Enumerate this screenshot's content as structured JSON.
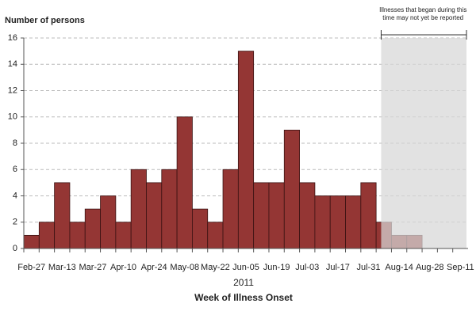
{
  "chart_data": {
    "type": "bar",
    "y_label": "Number of persons",
    "x_label_year": "2011",
    "x_label": "Week of Illness Onset",
    "annotation": "Illnesses that began during this time may not yet be reported",
    "categories": [
      "Feb-27",
      null,
      "Mar-13",
      null,
      "Mar-27",
      null,
      "Apr-10",
      null,
      "Apr-24",
      null,
      "May-08",
      null,
      "May-22",
      null,
      "Jun-05",
      null,
      "Jun-19",
      null,
      "Jul-03",
      null,
      "Jul-17",
      null,
      "Jul-31",
      null,
      "Aug-14",
      null,
      "Aug-28",
      null,
      "Sep-11"
    ],
    "values": [
      1,
      2,
      5,
      2,
      3,
      4,
      2,
      6,
      5,
      6,
      10,
      3,
      2,
      6,
      15,
      5,
      5,
      9,
      5,
      4,
      4,
      4,
      5,
      2,
      1,
      1,
      null,
      null,
      null
    ],
    "color": "#943634",
    "ylim": [
      0,
      16
    ],
    "yticks": [
      0,
      2,
      4,
      6,
      8,
      10,
      12,
      14,
      16
    ],
    "grid": true
  }
}
